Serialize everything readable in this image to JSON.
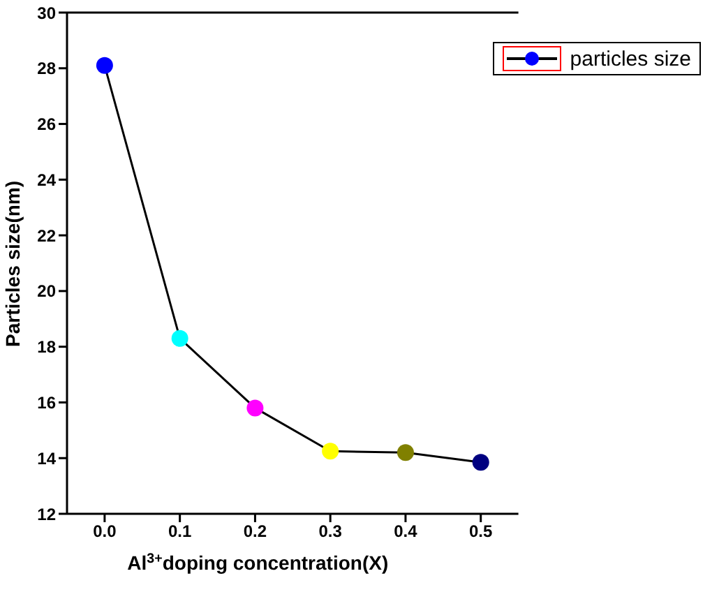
{
  "chart_data": {
    "type": "line",
    "xlabel": "Al$^{3+}$doping concentration(X)",
    "ylabel": "Particles size(nm)",
    "x": [
      0.0,
      0.1,
      0.2,
      0.3,
      0.4,
      0.5
    ],
    "series": [
      {
        "name": "particles size",
        "color": "#000000",
        "colors": [
          "#0000ff",
          "#00ffff",
          "#ff00ff",
          "#ffff00",
          "#808000",
          "#000080"
        ],
        "values": [
          28.1,
          18.3,
          15.8,
          14.25,
          14.2,
          13.85
        ]
      }
    ],
    "xlim": [
      -0.05,
      0.55
    ],
    "xticks": [
      {
        "value": 0,
        "label": "0.0"
      },
      0.1,
      0.2,
      0.3,
      0.4,
      0.5
    ],
    "ylim": [
      12,
      30
    ],
    "yticks": [
      12,
      14,
      16,
      18,
      20,
      22,
      24,
      26,
      28,
      30
    ],
    "legend": "top right",
    "marker": "circle",
    "line_style": "solid"
  }
}
